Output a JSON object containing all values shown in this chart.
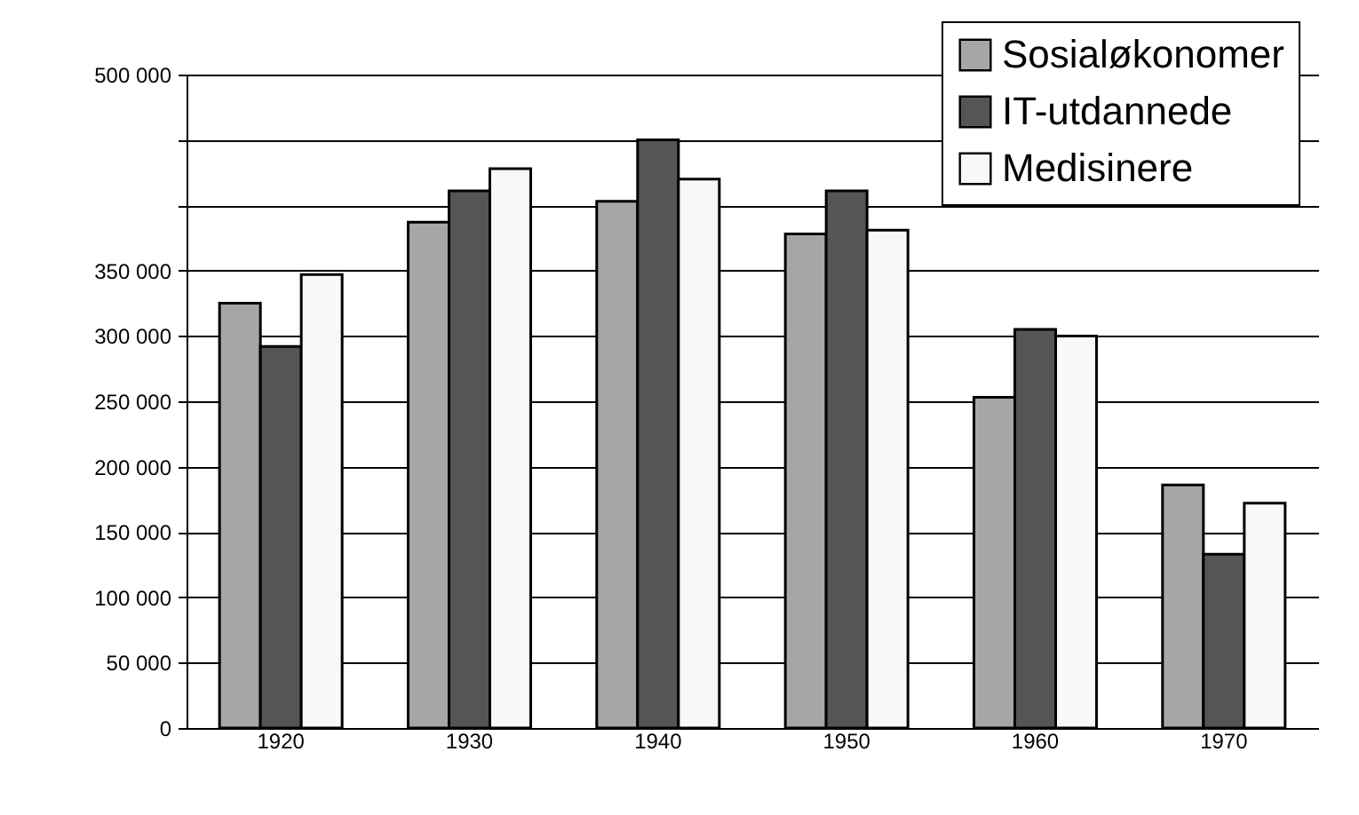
{
  "chart_data": {
    "type": "bar",
    "categories": [
      "1920",
      "1930",
      "1940",
      "1950",
      "1960",
      "1970"
    ],
    "series": [
      {
        "name": "Sosialøkonomer",
        "color": "#a6a6a6",
        "values": [
          325000,
          387000,
          403000,
          378000,
          253000,
          186000
        ]
      },
      {
        "name": "IT-utdannede",
        "color": "#555555",
        "values": [
          292000,
          411000,
          450000,
          411000,
          305000,
          133000
        ]
      },
      {
        "name": "Medisinere",
        "color": "#f8f8f8",
        "values": [
          347000,
          428000,
          420000,
          381000,
          300000,
          172000
        ]
      }
    ],
    "ylim": [
      0,
      500000
    ],
    "yticks": [
      {
        "value": 0,
        "label": "0"
      },
      {
        "value": 50000,
        "label": "50 000"
      },
      {
        "value": 100000,
        "label": "100 000"
      },
      {
        "value": 150000,
        "label": "150 000"
      },
      {
        "value": 200000,
        "label": "200 000"
      },
      {
        "value": 250000,
        "label": "250 000"
      },
      {
        "value": 300000,
        "label": "300 000"
      },
      {
        "value": 350000,
        "label": "350 000"
      },
      {
        "value": 400000,
        "label": null
      },
      {
        "value": 450000,
        "label": null
      },
      {
        "value": 500000,
        "label": "500 000"
      }
    ],
    "grid": "y",
    "legend": "top right"
  }
}
